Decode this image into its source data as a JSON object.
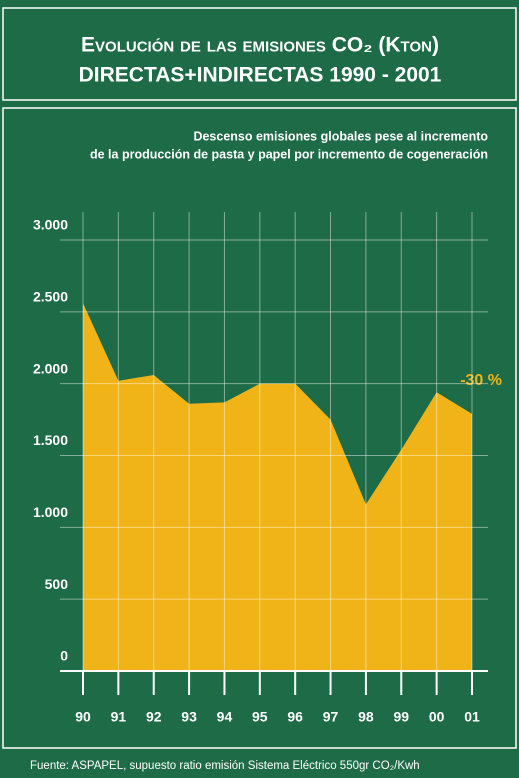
{
  "chart_data": {
    "type": "area",
    "title": "Evolución de las emisiones CO₂ (Kton)",
    "title2": "DIRECTAS+INDIRECTAS 1990 - 2001",
    "subtitle": [
      "Descenso emisiones globales pese al incremento",
      "de la producción de pasta y papel por incremento de cogeneración"
    ],
    "annotation": "-30 %",
    "source": "Fuente: ASPAPEL, supuesto ratio emisión Sistema Eléctrico 550gr CO₂/Kwh",
    "categories": [
      "90",
      "91",
      "92",
      "93",
      "94",
      "95",
      "96",
      "97",
      "98",
      "99",
      "00",
      "01"
    ],
    "values": [
      2560,
      2020,
      2060,
      1860,
      1870,
      2000,
      2000,
      1750,
      1160,
      1540,
      1940,
      1790
    ],
    "color": "#f0b418",
    "ylim": [
      0,
      3000
    ],
    "yticks": [
      0,
      500,
      {
        "value": 1000,
        "label": "1.000"
      },
      {
        "value": 1500,
        "label": "1.500"
      },
      {
        "value": 2000,
        "label": "2.000"
      },
      {
        "value": 2500,
        "label": "2.500"
      },
      {
        "value": 3000,
        "label": "3.000"
      }
    ],
    "grid": true
  }
}
